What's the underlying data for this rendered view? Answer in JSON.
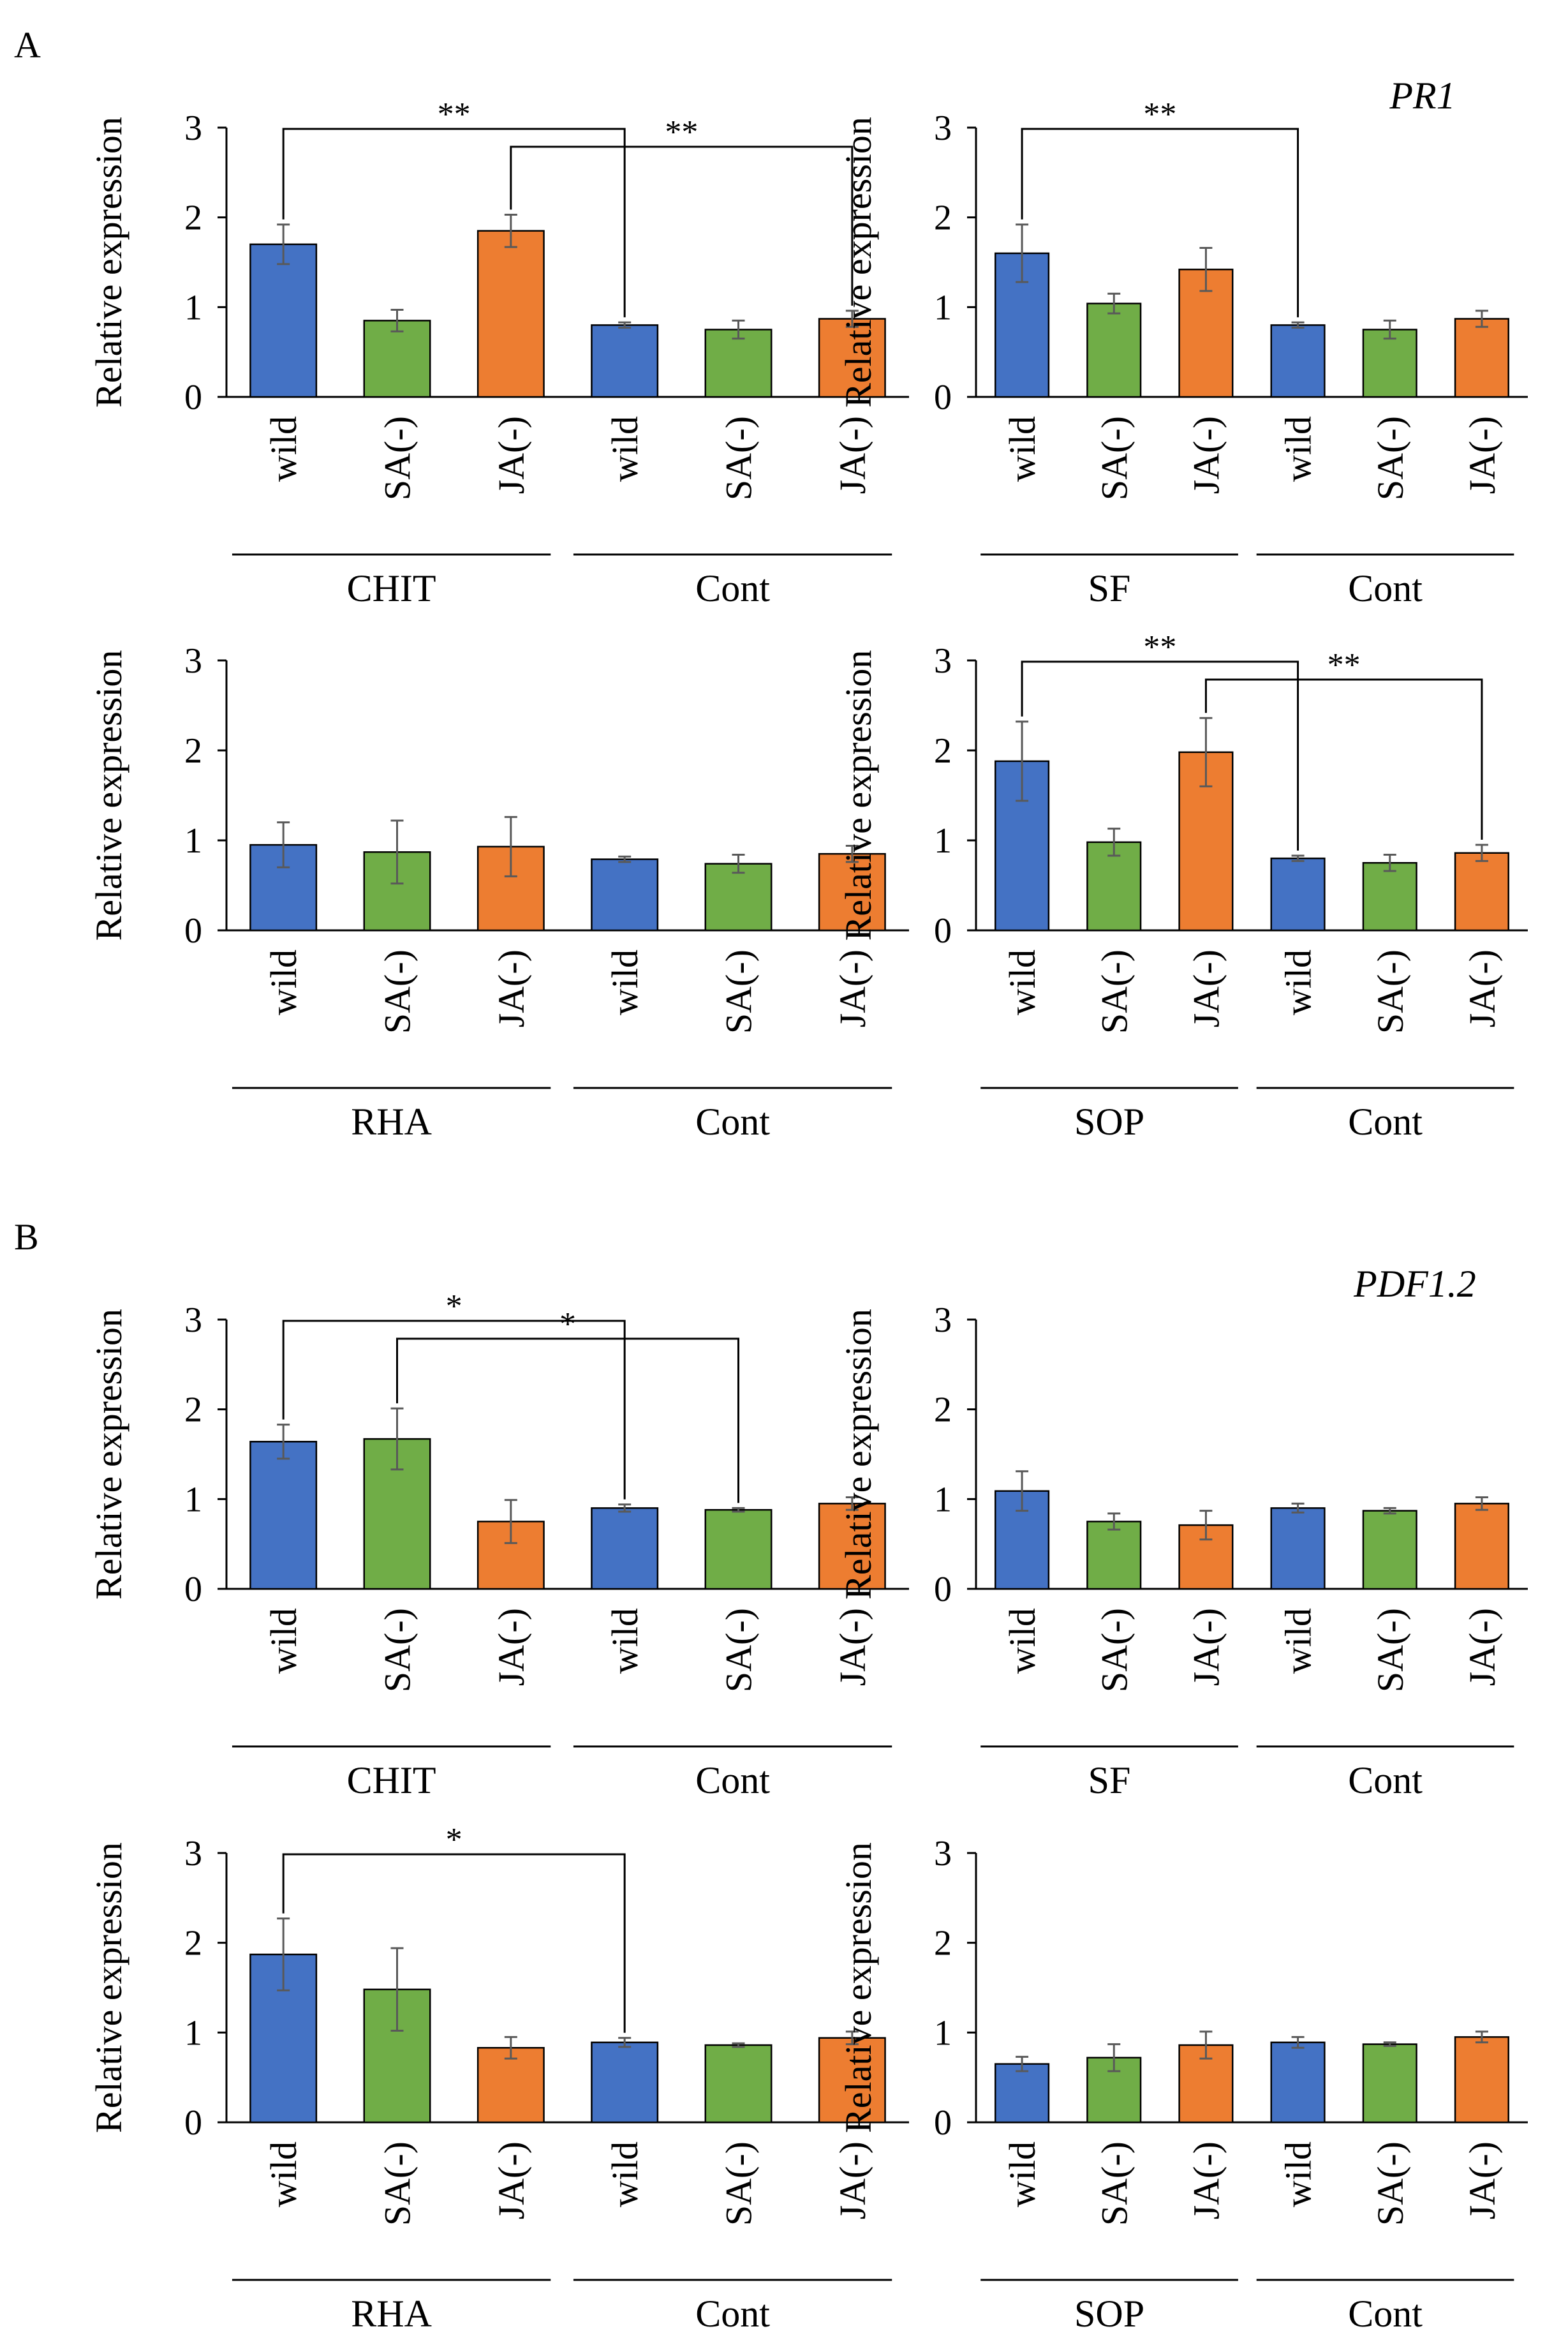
{
  "panels": [
    {
      "label": "A",
      "gene": "PR1"
    },
    {
      "label": "B",
      "gene": "PDF1.2"
    }
  ],
  "colors": {
    "wild": "#4472C4",
    "SA(-)": "#70AD47",
    "JA(-)": "#ED7D31",
    "axis": "#000000",
    "error": "#595959"
  },
  "chart_data": [
    {
      "id": "A-CHIT",
      "type": "bar",
      "panel": "A",
      "gene": "PR1",
      "ylabel": "Relative expression",
      "ylim": [
        0,
        3
      ],
      "yticks": [
        0,
        1,
        2,
        3
      ],
      "categories": [
        "wild",
        "SA(-)",
        "JA(-)",
        "wild",
        "SA(-)",
        "JA(-)"
      ],
      "groups": [
        {
          "label": "CHIT",
          "start": 0,
          "end": 2
        },
        {
          "label": "Cont",
          "start": 3,
          "end": 5
        }
      ],
      "values": [
        1.7,
        0.85,
        1.85,
        0.8,
        0.75,
        0.87
      ],
      "errors": [
        0.22,
        0.12,
        0.18,
        0.03,
        0.1,
        0.09
      ],
      "significance": [
        {
          "from": 0,
          "to": 3,
          "label": "**"
        },
        {
          "from": 2,
          "to": 5,
          "label": "**"
        }
      ]
    },
    {
      "id": "A-SF",
      "type": "bar",
      "panel": "A",
      "gene": "PR1",
      "ylabel": "Relative expression",
      "ylim": [
        0,
        3
      ],
      "yticks": [
        0,
        1,
        2,
        3
      ],
      "categories": [
        "wild",
        "SA(-)",
        "JA(-)",
        "wild",
        "SA(-)",
        "JA(-)"
      ],
      "groups": [
        {
          "label": "SF",
          "start": 0,
          "end": 2
        },
        {
          "label": "Cont",
          "start": 3,
          "end": 5
        }
      ],
      "values": [
        1.6,
        1.04,
        1.42,
        0.8,
        0.75,
        0.87
      ],
      "errors": [
        0.32,
        0.11,
        0.24,
        0.03,
        0.1,
        0.09
      ],
      "significance": [
        {
          "from": 0,
          "to": 3,
          "label": "**"
        }
      ]
    },
    {
      "id": "A-RHA",
      "type": "bar",
      "panel": "A",
      "gene": "PR1",
      "ylabel": "Relative expression",
      "ylim": [
        0,
        3
      ],
      "yticks": [
        0,
        1,
        2,
        3
      ],
      "categories": [
        "wild",
        "SA(-)",
        "JA(-)",
        "wild",
        "SA(-)",
        "JA(-)"
      ],
      "groups": [
        {
          "label": "RHA",
          "start": 0,
          "end": 2
        },
        {
          "label": "Cont",
          "start": 3,
          "end": 5
        }
      ],
      "values": [
        0.95,
        0.87,
        0.93,
        0.79,
        0.74,
        0.85
      ],
      "errors": [
        0.25,
        0.35,
        0.33,
        0.03,
        0.1,
        0.09
      ],
      "significance": []
    },
    {
      "id": "A-SOP",
      "type": "bar",
      "panel": "A",
      "gene": "PR1",
      "ylabel": "Relative expression",
      "ylim": [
        0,
        3
      ],
      "yticks": [
        0,
        1,
        2,
        3
      ],
      "categories": [
        "wild",
        "SA(-)",
        "JA(-)",
        "wild",
        "SA(-)",
        "JA(-)"
      ],
      "groups": [
        {
          "label": "SOP",
          "start": 0,
          "end": 2
        },
        {
          "label": "Cont",
          "start": 3,
          "end": 5
        }
      ],
      "values": [
        1.88,
        0.98,
        1.98,
        0.8,
        0.75,
        0.86
      ],
      "errors": [
        0.44,
        0.15,
        0.38,
        0.03,
        0.09,
        0.09
      ],
      "significance": [
        {
          "from": 0,
          "to": 3,
          "label": "**"
        },
        {
          "from": 2,
          "to": 5,
          "label": "**"
        }
      ]
    },
    {
      "id": "B-CHIT",
      "type": "bar",
      "panel": "B",
      "gene": "PDF1.2",
      "ylabel": "Relative expression",
      "ylim": [
        0,
        3
      ],
      "yticks": [
        0,
        1,
        2,
        3
      ],
      "categories": [
        "wild",
        "SA(-)",
        "JA(-)",
        "wild",
        "SA(-)",
        "JA(-)"
      ],
      "groups": [
        {
          "label": "CHIT",
          "start": 0,
          "end": 2
        },
        {
          "label": "Cont",
          "start": 3,
          "end": 5
        }
      ],
      "values": [
        1.64,
        1.67,
        0.75,
        0.9,
        0.88,
        0.95
      ],
      "errors": [
        0.19,
        0.34,
        0.24,
        0.04,
        0.02,
        0.07
      ],
      "significance": [
        {
          "from": 0,
          "to": 3,
          "label": "*"
        },
        {
          "from": 1,
          "to": 4,
          "label": "*"
        }
      ]
    },
    {
      "id": "B-SF",
      "type": "bar",
      "panel": "B",
      "gene": "PDF1.2",
      "ylabel": "Relative expression",
      "ylim": [
        0,
        3
      ],
      "yticks": [
        0,
        1,
        2,
        3
      ],
      "categories": [
        "wild",
        "SA(-)",
        "JA(-)",
        "wild",
        "SA(-)",
        "JA(-)"
      ],
      "groups": [
        {
          "label": "SF",
          "start": 0,
          "end": 2
        },
        {
          "label": "Cont",
          "start": 3,
          "end": 5
        }
      ],
      "values": [
        1.09,
        0.75,
        0.71,
        0.9,
        0.87,
        0.95
      ],
      "errors": [
        0.22,
        0.09,
        0.16,
        0.05,
        0.03,
        0.07
      ],
      "significance": []
    },
    {
      "id": "B-RHA",
      "type": "bar",
      "panel": "B",
      "gene": "PDF1.2",
      "ylabel": "Relative expression",
      "ylim": [
        0,
        3
      ],
      "yticks": [
        0,
        1,
        2,
        3
      ],
      "categories": [
        "wild",
        "SA(-)",
        "JA(-)",
        "wild",
        "SA(-)",
        "JA(-)"
      ],
      "groups": [
        {
          "label": "RHA",
          "start": 0,
          "end": 2
        },
        {
          "label": "Cont",
          "start": 3,
          "end": 5
        }
      ],
      "values": [
        1.87,
        1.48,
        0.83,
        0.89,
        0.86,
        0.94
      ],
      "errors": [
        0.4,
        0.46,
        0.12,
        0.05,
        0.02,
        0.07
      ],
      "significance": [
        {
          "from": 0,
          "to": 3,
          "label": "*"
        }
      ]
    },
    {
      "id": "B-SOP",
      "type": "bar",
      "panel": "B",
      "gene": "PDF1.2",
      "ylabel": "Relative expression",
      "ylim": [
        0,
        3
      ],
      "yticks": [
        0,
        1,
        2,
        3
      ],
      "categories": [
        "wild",
        "SA(-)",
        "JA(-)",
        "wild",
        "SA(-)",
        "JA(-)"
      ],
      "groups": [
        {
          "label": "SOP",
          "start": 0,
          "end": 2
        },
        {
          "label": "Cont",
          "start": 3,
          "end": 5
        }
      ],
      "values": [
        0.65,
        0.72,
        0.86,
        0.89,
        0.87,
        0.95
      ],
      "errors": [
        0.08,
        0.15,
        0.15,
        0.06,
        0.02,
        0.06
      ],
      "significance": []
    }
  ]
}
